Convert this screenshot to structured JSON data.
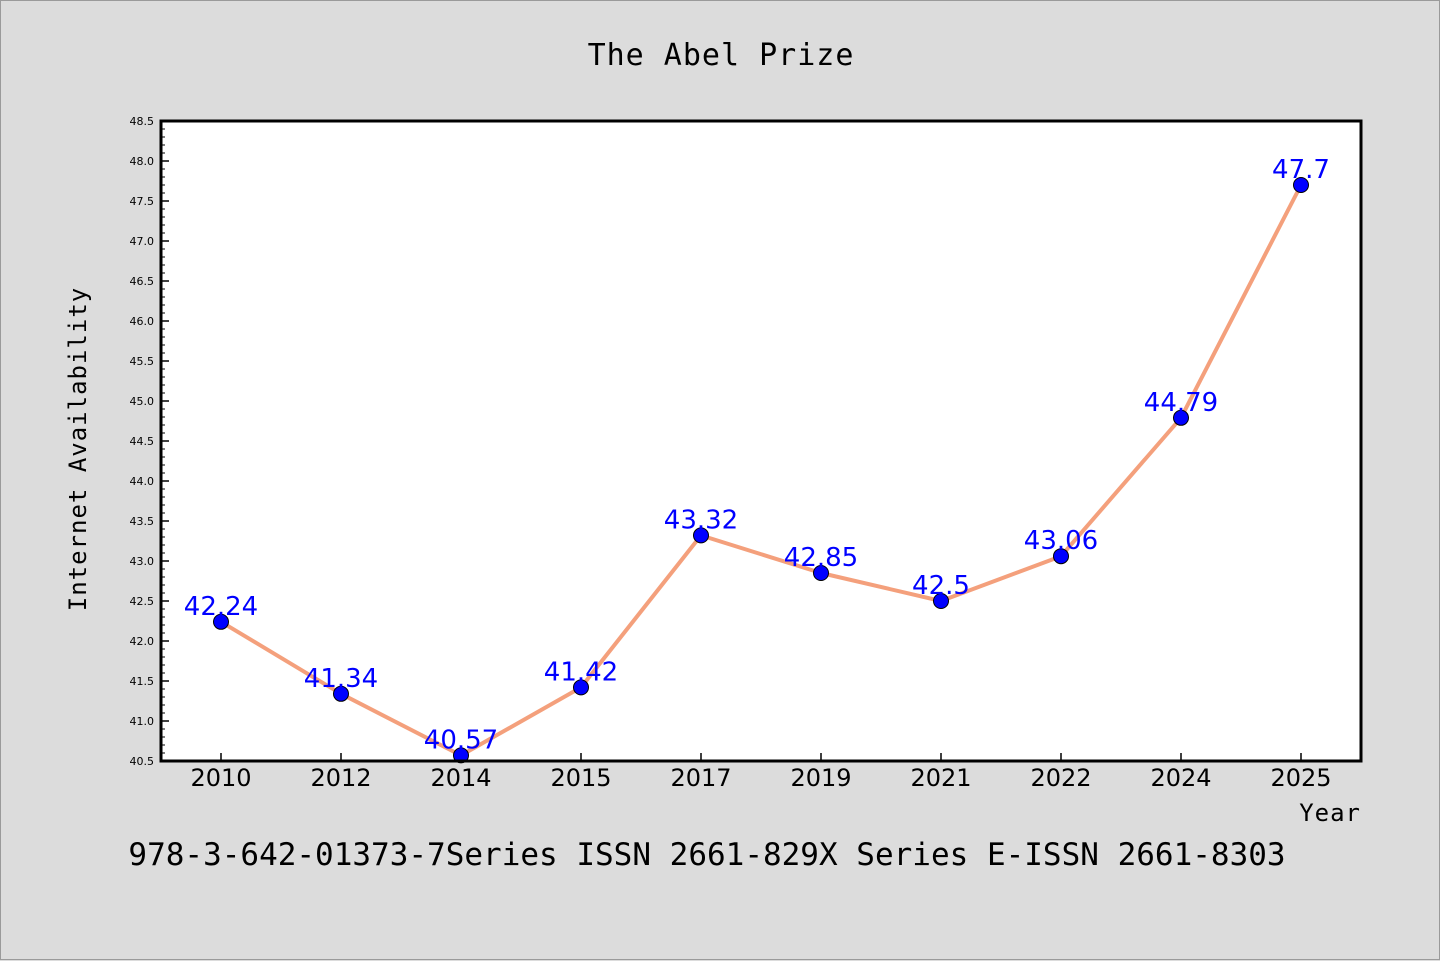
{
  "chart_data": {
    "type": "line",
    "title": "The Abel Prize",
    "xlabel": "Year",
    "ylabel": "Internet Availability",
    "categories": [
      "2010",
      "2012",
      "2014",
      "2015",
      "2017",
      "2019",
      "2021",
      "2022",
      "2024",
      "2025"
    ],
    "series": [
      {
        "values": [
          42.24,
          41.34,
          40.57,
          41.42,
          43.32,
          42.85,
          42.5,
          43.06,
          44.79,
          47.7
        ],
        "data_labels": [
          "42.24",
          "41.34",
          "40.57",
          "41.42",
          "43.32",
          "42.85",
          "42.5",
          "43.06",
          "44.79",
          "47.7"
        ],
        "line_color": "#f4a07c",
        "marker_color": "#0000ff"
      }
    ],
    "ylim": [
      40.5,
      48.5
    ],
    "yticks": [
      "40.5",
      "41.0",
      "41.5",
      "42.0",
      "42.5",
      "43.0",
      "43.5",
      "44.0",
      "44.5",
      "45.0",
      "45.5",
      "46.0",
      "46.5",
      "47.0",
      "47.5",
      "48.0",
      "48.5"
    ],
    "grid": false,
    "legend": "none"
  },
  "footer_text": "978-3-642-01373-7Series ISSN 2661-829X Series E-ISSN 2661-8303",
  "colors": {
    "background": "#dcdcdc",
    "plot_background": "#ffffff",
    "line": "#f4a07c",
    "marker": "#0000ff",
    "data_label": "#0000ff"
  }
}
